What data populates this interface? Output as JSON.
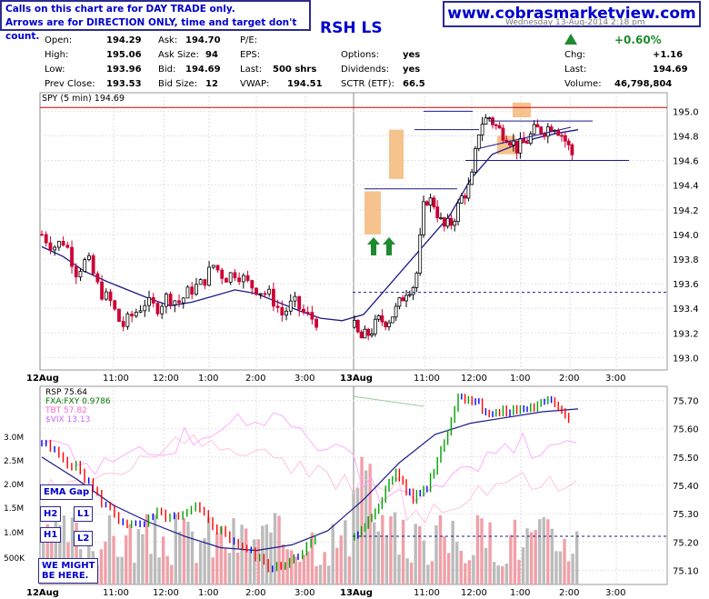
{
  "header": {
    "note_line1": "Calls on this chart are for DAY TRADE only.",
    "note_line2": "Arrows are for DIRECTION ONLY, time and target don't count.",
    "website": "www.cobrasmarketview.com",
    "ticker": "RSH LS",
    "date": "Wednesday 13-Aug-2014 2:18 pm"
  },
  "quote": {
    "open_label": "Open:",
    "open": "194.29",
    "high_label": "High:",
    "high": "195.06",
    "low_label": "Low:",
    "low": "193.96",
    "prev_label": "Prev Close:",
    "prev": "193.53",
    "ask_label": "Ask:",
    "ask": "194.70",
    "asksize_label": "Ask Size:",
    "asksize": "94",
    "bid_label": "Bid:",
    "bid": "194.69",
    "bidsize_label": "Bid Size:",
    "bidsize": "12",
    "pe_label": "P/E:",
    "pe": "",
    "eps_label": "EPS:",
    "eps": "",
    "last_label": "Last:",
    "last": "500 shrs",
    "vwap_label": "VWAP:",
    "vwap": "194.51",
    "options_label": "Options:",
    "options": "yes",
    "dividends_label": "Dividends:",
    "dividends": "yes",
    "sctr_label": "SCTR (ETF):",
    "sctr": "66.5",
    "change_pct": "+0.60%",
    "chg_label": "Chg:",
    "chg": "+1.16",
    "last2_label": "Last:",
    "last2": "194.69",
    "volume_label": "Volume:",
    "volume": "46,798,804"
  },
  "labels": {
    "ema_gap": "EMA Gap",
    "h2": "H2",
    "l1": "L1",
    "h1": "H1",
    "l2": "L2",
    "might1": "WE MIGHT",
    "might2": "BE HERE."
  },
  "colors": {
    "up_candle": "#000000",
    "down_candle": "#cc0033",
    "ema": "#1a1a8c",
    "resistance": "#cc0000",
    "box": "#f4b77a",
    "arrow": "#1d8a2e",
    "rsp_up": "#00a000",
    "rsp_down": "#ff0000",
    "rsp_flat": "#0000ff",
    "vix": "#ff99ff",
    "volume": "#bbbbbb",
    "volume_down": "#f0a0a8"
  },
  "chart_data": [
    {
      "type": "candlestick",
      "title": "SPY (5 min) 194.69",
      "ylim": [
        192.9,
        195.15
      ],
      "y_ticks": [
        "195.0",
        "194.8",
        "194.6",
        "194.4",
        "194.2",
        "194.0",
        "193.8",
        "193.6",
        "193.4",
        "193.2",
        "193.0"
      ],
      "x_ticks": [
        "12Aug",
        "11:00",
        "12:00",
        "1:00",
        "2:00",
        "3:00",
        "13Aug",
        "11:00",
        "12:00",
        "1:00",
        "2:00",
        "3:00"
      ],
      "close_path": [
        194.0,
        193.9,
        193.95,
        193.7,
        193.8,
        193.55,
        193.45,
        193.25,
        193.35,
        193.45,
        193.4,
        193.5,
        193.45,
        193.55,
        193.6,
        193.75,
        193.65,
        193.7,
        193.6,
        193.55,
        193.5,
        193.35,
        193.45,
        193.35,
        193.3,
        193.15,
        193.2,
        193.3,
        193.3,
        193.4,
        193.55,
        193.6,
        194.3,
        194.25,
        194.05,
        194.1,
        194.3,
        194.4,
        194.9,
        194.95,
        194.85,
        194.8,
        194.7,
        194.75,
        194.85,
        194.85,
        194.9,
        194.8,
        194.65
      ],
      "ema_path": [
        193.9,
        193.82,
        193.7,
        193.62,
        193.55,
        193.48,
        193.42,
        193.45,
        193.5,
        193.55,
        193.52,
        193.45,
        193.38,
        193.32,
        193.3,
        193.35,
        193.55,
        193.75,
        193.95,
        194.15,
        194.45,
        194.65,
        194.72,
        194.78,
        194.82,
        194.85
      ],
      "annotations": [
        "resistance 195.03",
        "support 194.6",
        "gap 193.53",
        "two up arrows near 194.0"
      ]
    },
    {
      "type": "line",
      "title": "RSP 75.64",
      "series": [
        {
          "name": "RSP 75.64"
        },
        {
          "name": "FXA:FXY 0.9786"
        },
        {
          "name": "TBT 57.82"
        },
        {
          "name": "$VIX 13.13"
        }
      ],
      "ylim": [
        75.05,
        75.75
      ],
      "y_ticks": [
        "75.70",
        "75.60",
        "75.50",
        "75.40",
        "75.30",
        "75.20",
        "75.10"
      ],
      "volume_ticks": [
        "3.0M",
        "2.5M",
        "2.0M",
        "1.5M",
        "1.0M",
        "500K"
      ],
      "x_ticks": [
        "12Aug",
        "11:00",
        "12:00",
        "1:00",
        "2:00",
        "3:00",
        "13Aug",
        "11:00",
        "12:00",
        "1:00",
        "2:00",
        "3:00"
      ]
    }
  ]
}
